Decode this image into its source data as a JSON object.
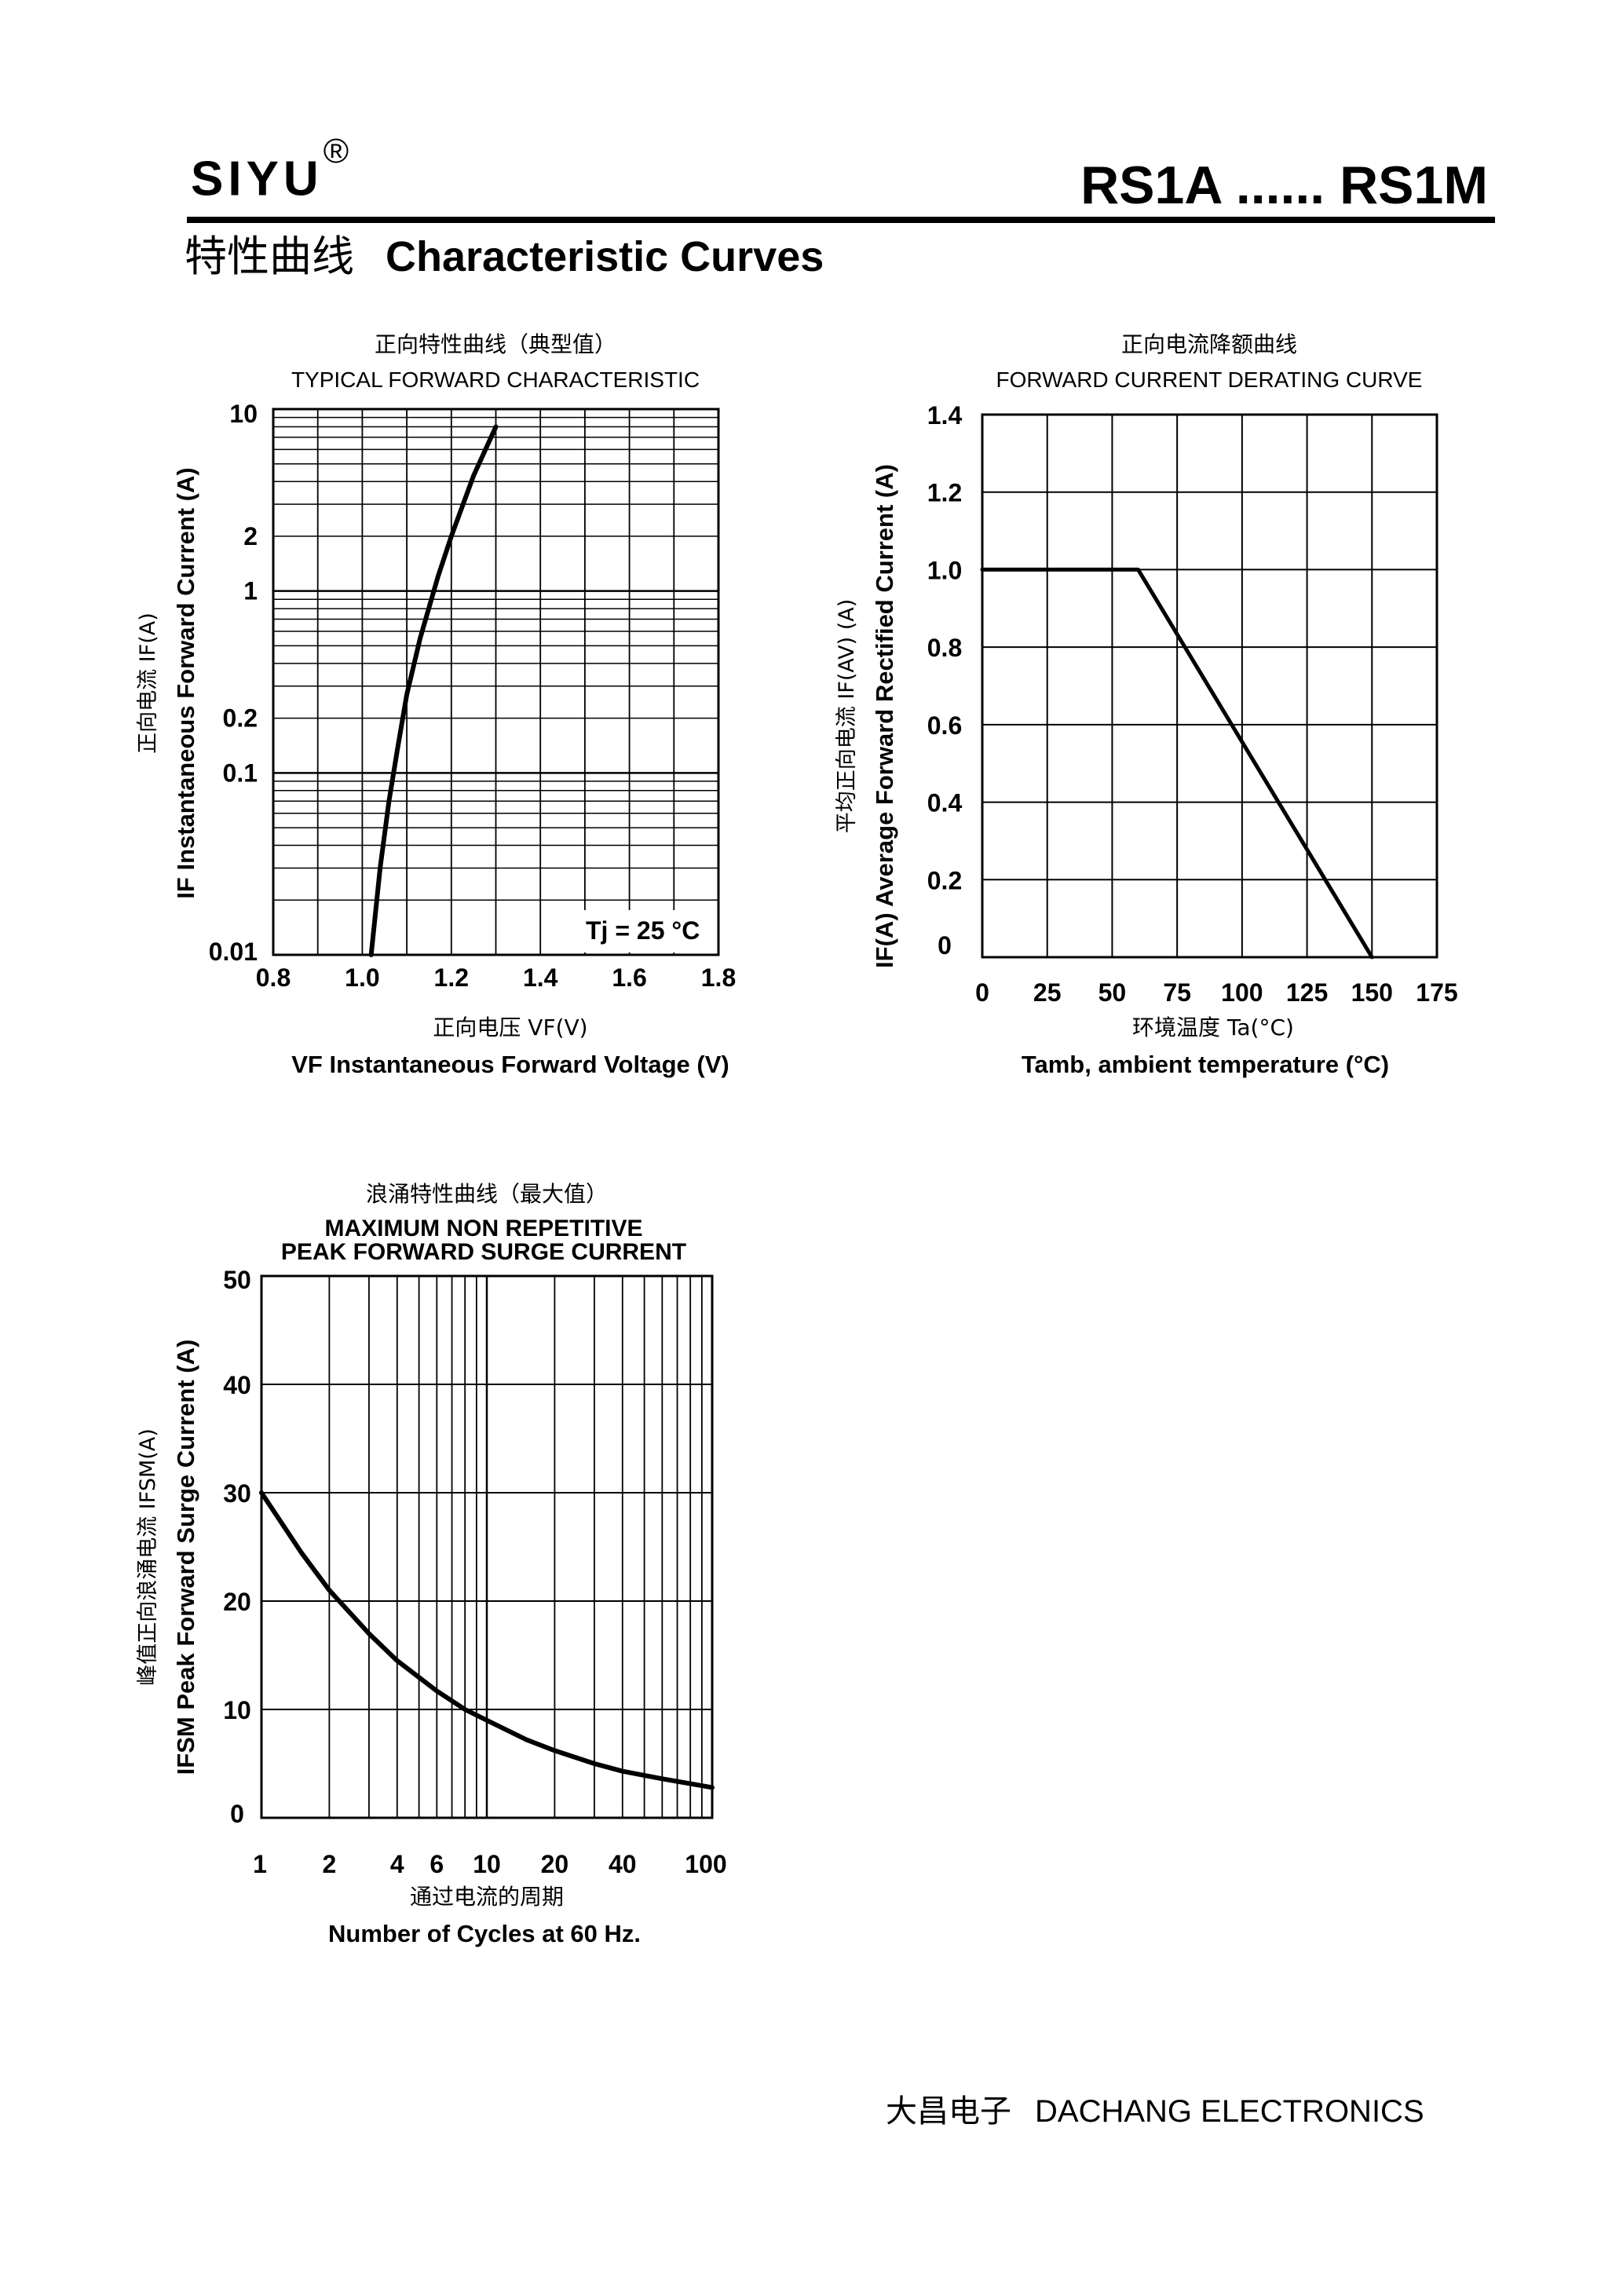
{
  "header": {
    "brand": "SIYU",
    "registered_mark": "®",
    "part_range": "RS1A ...... RS1M",
    "section_title_cn": "特性曲线",
    "section_title_en": "Characteristic Curves"
  },
  "footer": {
    "company_cn": "大昌电子",
    "company_en": "DACHANG ELECTRONICS"
  },
  "chart_data": [
    {
      "id": "forward",
      "type": "line",
      "title_cn": "正向特性曲线（典型值）",
      "title_en": "TYPICAL FORWARD CHARACTERISTIC",
      "xlabel_cn": "正向电压",
      "xlabel_sym": "VF(V)",
      "xlabel_en": "VF Instantaneous Forward Voltage (V)",
      "ylabel_cn": "正向电流",
      "ylabel_sym": "IF(A)",
      "ylabel_en": "IF Instantaneous Forward Current (A)",
      "annotation": "Tj = 25 °C",
      "x_scale": "linear",
      "y_scale": "log",
      "xlim": [
        0.8,
        1.8
      ],
      "ylim": [
        0.01,
        10
      ],
      "x_ticks": [
        "0.8",
        "1.0",
        "1.2",
        "1.4",
        "1.6",
        "1.8"
      ],
      "y_ticks": [
        "10",
        "2",
        "1",
        "0.2",
        "0.1",
        "0.01"
      ],
      "grid": true,
      "series": [
        {
          "x": [
            1.02,
            1.04,
            1.06,
            1.08,
            1.1,
            1.13,
            1.17,
            1.2,
            1.25,
            1.3
          ],
          "y": [
            0.01,
            0.03,
            0.07,
            0.14,
            0.27,
            0.55,
            1.2,
            2.0,
            4.3,
            8.0
          ]
        }
      ]
    },
    {
      "id": "derating",
      "type": "line",
      "title_cn": "正向电流降额曲线",
      "title_en": "FORWARD CURRENT DERATING CURVE",
      "xlabel_cn": "环境温度",
      "xlabel_sym": "Ta(°C)",
      "xlabel_en": "Tamb, ambient temperature (°C)",
      "ylabel_cn": "平均正向电流",
      "ylabel_sym": "IF(AV) (A)",
      "ylabel_en": "IF(A) Average Forward Rectified Current (A)",
      "x_scale": "linear",
      "y_scale": "linear",
      "xlim": [
        0,
        175
      ],
      "ylim": [
        0,
        1.4
      ],
      "x_ticks": [
        "0",
        "25",
        "50",
        "75",
        "100",
        "125",
        "150",
        "175"
      ],
      "y_ticks": [
        "1.4",
        "1.2",
        "1.0",
        "0.8",
        "0.6",
        "0.4",
        "0.2",
        "0"
      ],
      "grid": true,
      "series": [
        {
          "x": [
            0,
            60,
            150
          ],
          "y": [
            1.0,
            1.0,
            0
          ]
        }
      ]
    },
    {
      "id": "surge",
      "type": "line",
      "title_cn": "浪涌特性曲线（最大值）",
      "title_en": "MAXIMUM NON REPETITIVE PEAK FORWARD SURGE CURRENT",
      "xlabel_cn": "通过电流的周期",
      "xlabel_en": "Number of Cycles at 60 Hz.",
      "ylabel_cn": "峰值正向浪涌电流",
      "ylabel_sym": "IFSM(A)",
      "ylabel_en": "IFSM Peak Forward Surge Current (A)",
      "x_scale": "log",
      "y_scale": "linear",
      "xlim": [
        1,
        100
      ],
      "ylim": [
        0,
        50
      ],
      "x_ticks": [
        "1",
        "2",
        "4",
        "6",
        "10",
        "20",
        "40",
        "100"
      ],
      "y_ticks": [
        "50",
        "40",
        "30",
        "20",
        "10",
        "0"
      ],
      "grid": true,
      "series": [
        {
          "x": [
            1,
            1.5,
            2,
            3,
            4,
            6,
            8,
            10,
            15,
            20,
            30,
            40,
            60,
            100
          ],
          "y": [
            30,
            24.5,
            21,
            17,
            14.5,
            11.7,
            10,
            9,
            7.2,
            6.2,
            5,
            4.3,
            3.6,
            2.8
          ]
        }
      ]
    }
  ]
}
